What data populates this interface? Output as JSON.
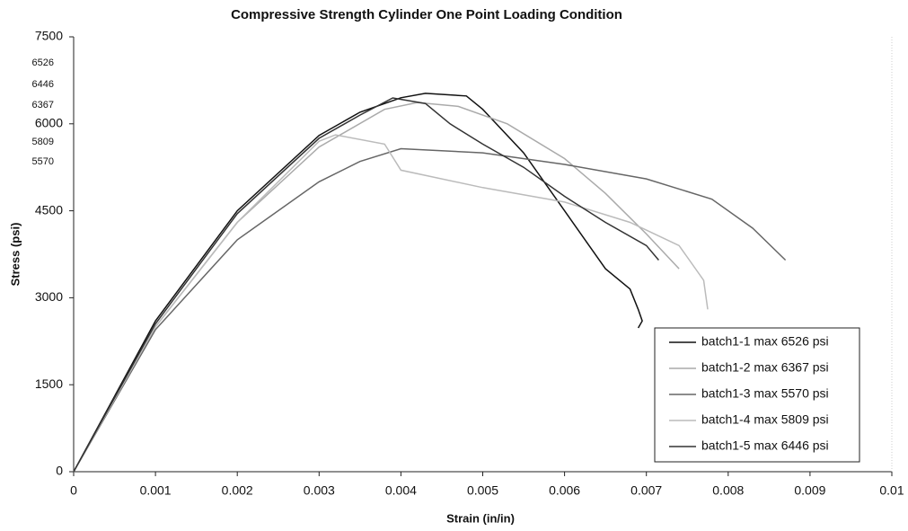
{
  "chart_data": {
    "type": "line",
    "title": "Compressive Strength Cylinder  One Point Loading Condition",
    "xlabel": "Strain (in/in)",
    "ylabel": "Stress (psi)",
    "xlim": [
      0,
      0.01
    ],
    "xticks": [
      0,
      0.001,
      0.002,
      0.003,
      0.004,
      0.005,
      0.006,
      0.007,
      0.008,
      0.009,
      0.01
    ],
    "ylim": [
      0,
      7500
    ],
    "yticks": [
      0,
      1500,
      3000,
      4500,
      6000,
      7500
    ],
    "annotations": [
      "6526",
      "6446",
      "6367",
      "5809",
      "5570"
    ],
    "legend": "lower right",
    "grid": false,
    "series": [
      {
        "name": "batch1-1 max 6526 psi",
        "color": "#111111",
        "x": [
          0,
          0.001,
          0.002,
          0.003,
          0.0035,
          0.004,
          0.0043,
          0.0048,
          0.005,
          0.0055,
          0.006,
          0.0063,
          0.0065,
          0.0068,
          0.0069,
          0.00695,
          0.0069
        ],
        "values": [
          0,
          2600,
          4500,
          5800,
          6200,
          6450,
          6526,
          6480,
          6250,
          5500,
          4500,
          3900,
          3500,
          3150,
          2800,
          2600,
          2480
        ]
      },
      {
        "name": "batch1-2 max 6367 psi",
        "color": "#aaaaaa",
        "x": [
          0,
          0.001,
          0.002,
          0.003,
          0.0038,
          0.0042,
          0.0047,
          0.0053,
          0.006,
          0.0065,
          0.007,
          0.0074
        ],
        "values": [
          0,
          2500,
          4300,
          5600,
          6250,
          6367,
          6300,
          6000,
          5400,
          4800,
          4100,
          3500
        ]
      },
      {
        "name": "batch1-3 max 5570 psi",
        "color": "#666666",
        "x": [
          0,
          0.001,
          0.002,
          0.003,
          0.0035,
          0.004,
          0.005,
          0.006,
          0.007,
          0.0078,
          0.0083,
          0.0087
        ],
        "values": [
          0,
          2450,
          4000,
          5000,
          5350,
          5570,
          5500,
          5300,
          5050,
          4700,
          4200,
          3650
        ]
      },
      {
        "name": "batch1-4 max 5809 psi",
        "color": "#bbbbbb",
        "x": [
          0,
          0.001,
          0.002,
          0.003,
          0.0032,
          0.0038,
          0.004,
          0.005,
          0.006,
          0.0068,
          0.0074,
          0.0077,
          0.00775
        ],
        "values": [
          0,
          2500,
          4300,
          5700,
          5809,
          5650,
          5200,
          4900,
          4650,
          4300,
          3900,
          3300,
          2800
        ]
      },
      {
        "name": "batch1-5 max 6446 psi",
        "color": "#333333",
        "x": [
          0,
          0.001,
          0.002,
          0.003,
          0.0035,
          0.0039,
          0.0043,
          0.0046,
          0.005,
          0.0055,
          0.006,
          0.0065,
          0.007,
          0.00715
        ],
        "values": [
          0,
          2550,
          4450,
          5750,
          6150,
          6446,
          6350,
          6000,
          5650,
          5250,
          4750,
          4300,
          3900,
          3650
        ]
      }
    ]
  }
}
